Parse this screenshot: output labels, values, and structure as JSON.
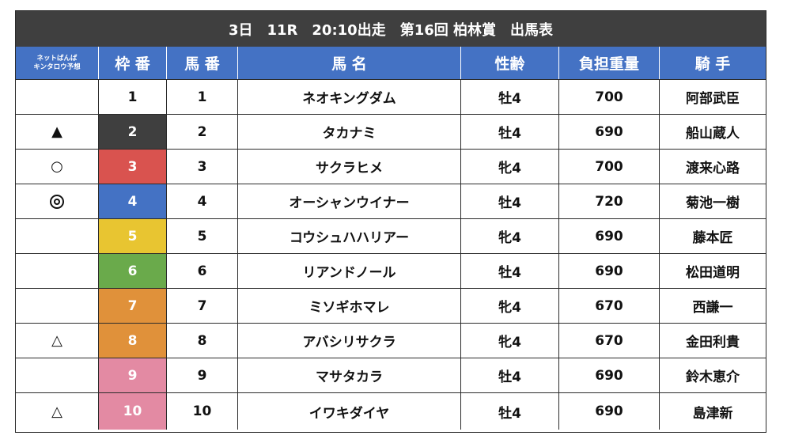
{
  "title": "3日　11R　20:10出走　第16回 柏林賞　出馬表",
  "headers": {
    "prediction_line1": "ネットばんば",
    "prediction_line2": "キンタロウ予想",
    "waku": "枠 番",
    "umaban": "馬 番",
    "horse_name": "馬 名",
    "sex_age": "性齢",
    "weight": "負担重量",
    "jockey": "騎 手"
  },
  "colors": {
    "title_bar": "#3f3f3f",
    "header": "#4472c4",
    "waku1": "#ffffff",
    "waku2": "#3f3f3f",
    "waku3": "#d9534f",
    "waku4": "#4472c4",
    "waku5": "#e8c531",
    "waku6": "#6aaa4b",
    "waku7_8": "#e0913a",
    "waku9_10": "#e38aa3"
  },
  "rows": [
    {
      "mark": "",
      "mark_icon": "none",
      "waku": "1",
      "waku_color": "#ffffff",
      "waku_text_color": "#111111",
      "umaban": "1",
      "name": "ネオキングダム",
      "sex_age": "牡4",
      "weight": "700",
      "jockey": "阿部武臣"
    },
    {
      "mark": "▲",
      "mark_icon": "black-triangle-icon",
      "waku": "2",
      "waku_color": "#3f3f3f",
      "waku_text_color": "#ffffff",
      "umaban": "2",
      "name": "タカナミ",
      "sex_age": "牡4",
      "weight": "690",
      "jockey": "船山蔵人"
    },
    {
      "mark": "○",
      "mark_icon": "white-circle-icon",
      "waku": "3",
      "waku_color": "#d9534f",
      "waku_text_color": "#ffffff",
      "umaban": "3",
      "name": "サクラヒメ",
      "sex_age": "牝4",
      "weight": "700",
      "jockey": "渡来心路"
    },
    {
      "mark": "◎",
      "mark_icon": "double-circle-icon",
      "waku": "4",
      "waku_color": "#4472c4",
      "waku_text_color": "#ffffff",
      "umaban": "4",
      "name": "オーシャンウイナー",
      "sex_age": "牡4",
      "weight": "720",
      "jockey": "菊池一樹"
    },
    {
      "mark": "",
      "mark_icon": "none",
      "waku": "5",
      "waku_color": "#e8c531",
      "waku_text_color": "#ffffff",
      "umaban": "5",
      "name": "コウシュハハリアー",
      "sex_age": "牝4",
      "weight": "690",
      "jockey": "藤本匠"
    },
    {
      "mark": "",
      "mark_icon": "none",
      "waku": "6",
      "waku_color": "#6aaa4b",
      "waku_text_color": "#ffffff",
      "umaban": "6",
      "name": "リアンドノール",
      "sex_age": "牡4",
      "weight": "690",
      "jockey": "松田道明"
    },
    {
      "mark": "",
      "mark_icon": "none",
      "waku": "7",
      "waku_color": "#e0913a",
      "waku_text_color": "#ffffff",
      "umaban": "7",
      "name": "ミソギホマレ",
      "sex_age": "牝4",
      "weight": "670",
      "jockey": "西謙一"
    },
    {
      "mark": "△",
      "mark_icon": "white-triangle-icon",
      "waku": "8",
      "waku_color": "#e0913a",
      "waku_text_color": "#ffffff",
      "umaban": "8",
      "name": "アバシリサクラ",
      "sex_age": "牝4",
      "weight": "670",
      "jockey": "金田利貴"
    },
    {
      "mark": "",
      "mark_icon": "none",
      "waku": "9",
      "waku_color": "#e38aa3",
      "waku_text_color": "#ffffff",
      "umaban": "9",
      "name": "マサタカラ",
      "sex_age": "牡4",
      "weight": "690",
      "jockey": "鈴木恵介"
    },
    {
      "mark": "△",
      "mark_icon": "white-triangle-icon",
      "waku": "10",
      "waku_color": "#e38aa3",
      "waku_text_color": "#ffffff",
      "umaban": "10",
      "name": "イワキダイヤ",
      "sex_age": "牡4",
      "weight": "690",
      "jockey": "島津新"
    }
  ]
}
